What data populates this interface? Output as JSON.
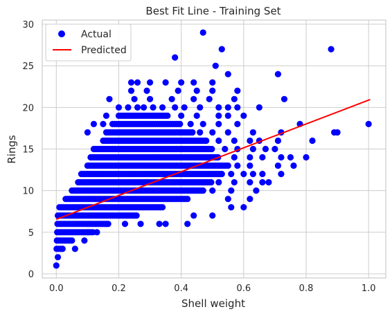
{
  "colors": {
    "actual": "#0000ff",
    "predicted": "#ff0000",
    "grid": "#cccccc",
    "axes_background": "#ffffff",
    "frame": "#cccccc",
    "text": "#262626"
  },
  "chart_data": {
    "type": "scatter",
    "title": "Best Fit Line - Training Set",
    "xlabel": "Shell weight",
    "ylabel": "Rings",
    "xlim": [
      -0.045,
      1.055
    ],
    "ylim": [
      -0.5,
      30.5
    ],
    "xticks": [
      0.0,
      0.2,
      0.4,
      0.6,
      0.8,
      1.0
    ],
    "xtick_labels": [
      "0.0",
      "0.2",
      "0.4",
      "0.6",
      "0.8",
      "1.0"
    ],
    "yticks": [
      0,
      5,
      10,
      15,
      20,
      25,
      30
    ],
    "ytick_labels": [
      "0",
      "5",
      "10",
      "15",
      "20",
      "25",
      "30"
    ],
    "grid": true,
    "legend_position": "top-left",
    "series": [
      {
        "name": "Actual",
        "kind": "scatter",
        "color": "#0000ff",
        "dense_bands": [
          {
            "y": 3,
            "x": [
              0.001,
              0.02
            ]
          },
          {
            "y": 4,
            "x": [
              0.002,
              0.05
            ]
          },
          {
            "y": 5,
            "x": [
              0.003,
              0.12
            ]
          },
          {
            "y": 6,
            "x": [
              0.004,
              0.17
            ]
          },
          {
            "y": 7,
            "x": [
              0.005,
              0.26
            ]
          },
          {
            "y": 8,
            "x": [
              0.01,
              0.34
            ]
          },
          {
            "y": 9,
            "x": [
              0.03,
              0.42
            ]
          },
          {
            "y": 10,
            "x": [
              0.05,
              0.47
            ]
          },
          {
            "y": 11,
            "x": [
              0.07,
              0.5
            ]
          },
          {
            "y": 12,
            "x": [
              0.08,
              0.53
            ]
          },
          {
            "y": 13,
            "x": [
              0.1,
              0.55
            ]
          },
          {
            "y": 14,
            "x": [
              0.11,
              0.52
            ]
          },
          {
            "y": 15,
            "x": [
              0.12,
              0.5
            ]
          },
          {
            "y": 16,
            "x": [
              0.15,
              0.48
            ]
          },
          {
            "y": 17,
            "x": [
              0.16,
              0.44
            ]
          },
          {
            "y": 18,
            "x": [
              0.18,
              0.4
            ]
          },
          {
            "y": 19,
            "x": [
              0.2,
              0.36
            ]
          }
        ],
        "sparse_points": [
          [
            0.0,
            1
          ],
          [
            0.005,
            2
          ],
          [
            0.02,
            3
          ],
          [
            0.06,
            3
          ],
          [
            0.09,
            4
          ],
          [
            0.13,
            5
          ],
          [
            0.16,
            6
          ],
          [
            0.22,
            6
          ],
          [
            0.27,
            6
          ],
          [
            0.33,
            6
          ],
          [
            0.35,
            6
          ],
          [
            0.42,
            6
          ],
          [
            0.44,
            7
          ],
          [
            0.5,
            7
          ],
          [
            0.56,
            8
          ],
          [
            0.6,
            8
          ],
          [
            0.55,
            9
          ],
          [
            0.62,
            9
          ],
          [
            0.5,
            10
          ],
          [
            0.56,
            10
          ],
          [
            0.64,
            10
          ],
          [
            0.52,
            11
          ],
          [
            0.57,
            11
          ],
          [
            0.62,
            11
          ],
          [
            0.66,
            11
          ],
          [
            0.68,
            11
          ],
          [
            0.56,
            12
          ],
          [
            0.6,
            12
          ],
          [
            0.63,
            12
          ],
          [
            0.66,
            12
          ],
          [
            0.72,
            12
          ],
          [
            0.58,
            13
          ],
          [
            0.62,
            13
          ],
          [
            0.71,
            13
          ],
          [
            0.76,
            13
          ],
          [
            0.57,
            14
          ],
          [
            0.62,
            14
          ],
          [
            0.66,
            14
          ],
          [
            0.72,
            14
          ],
          [
            0.75,
            14
          ],
          [
            0.8,
            14
          ],
          [
            0.54,
            15
          ],
          [
            0.58,
            15
          ],
          [
            0.63,
            15
          ],
          [
            0.67,
            15
          ],
          [
            0.7,
            15
          ],
          [
            0.52,
            16
          ],
          [
            0.57,
            16
          ],
          [
            0.62,
            16
          ],
          [
            0.65,
            16
          ],
          [
            0.71,
            16
          ],
          [
            0.82,
            16
          ],
          [
            0.1,
            17
          ],
          [
            0.46,
            17
          ],
          [
            0.5,
            17
          ],
          [
            0.55,
            17
          ],
          [
            0.63,
            17
          ],
          [
            0.72,
            17
          ],
          [
            0.89,
            17
          ],
          [
            0.9,
            17
          ],
          [
            0.12,
            18
          ],
          [
            0.15,
            18
          ],
          [
            0.43,
            18
          ],
          [
            0.47,
            18
          ],
          [
            0.52,
            18
          ],
          [
            0.58,
            18
          ],
          [
            0.78,
            18
          ],
          [
            1.0,
            18
          ],
          [
            0.16,
            19
          ],
          [
            0.4,
            19
          ],
          [
            0.45,
            19
          ],
          [
            0.52,
            19
          ],
          [
            0.55,
            19
          ],
          [
            0.6,
            19
          ],
          [
            0.2,
            20
          ],
          [
            0.23,
            20
          ],
          [
            0.26,
            20
          ],
          [
            0.28,
            20
          ],
          [
            0.31,
            20
          ],
          [
            0.34,
            20
          ],
          [
            0.38,
            20
          ],
          [
            0.41,
            20
          ],
          [
            0.46,
            20
          ],
          [
            0.52,
            20
          ],
          [
            0.55,
            20
          ],
          [
            0.58,
            20
          ],
          [
            0.65,
            20
          ],
          [
            0.17,
            21
          ],
          [
            0.25,
            21
          ],
          [
            0.3,
            21
          ],
          [
            0.37,
            21
          ],
          [
            0.44,
            21
          ],
          [
            0.49,
            21
          ],
          [
            0.57,
            21
          ],
          [
            0.73,
            21
          ],
          [
            0.24,
            22
          ],
          [
            0.29,
            22
          ],
          [
            0.39,
            22
          ],
          [
            0.45,
            22
          ],
          [
            0.5,
            22
          ],
          [
            0.58,
            22
          ],
          [
            0.24,
            23
          ],
          [
            0.26,
            23
          ],
          [
            0.3,
            23
          ],
          [
            0.35,
            23
          ],
          [
            0.4,
            23
          ],
          [
            0.44,
            23
          ],
          [
            0.5,
            23
          ],
          [
            0.55,
            24
          ],
          [
            0.71,
            24
          ],
          [
            0.51,
            25
          ],
          [
            0.38,
            26
          ],
          [
            0.53,
            27
          ],
          [
            0.88,
            27
          ],
          [
            0.47,
            29
          ]
        ]
      },
      {
        "name": "Predicted",
        "kind": "line",
        "color": "#ff0000",
        "x": [
          0.0,
          1.005
        ],
        "y": [
          6.55,
          20.95
        ]
      }
    ]
  }
}
